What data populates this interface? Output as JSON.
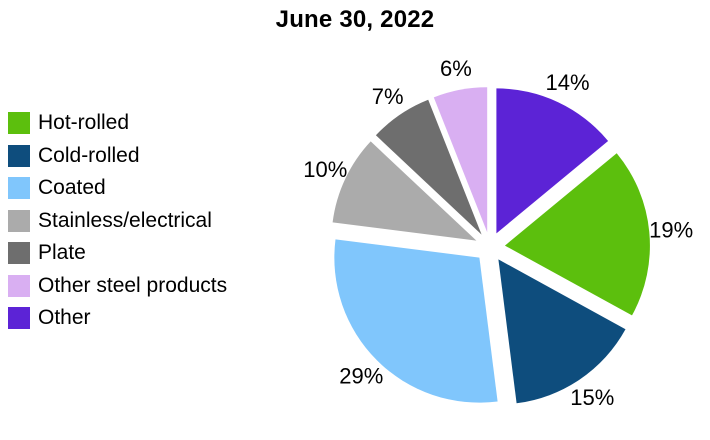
{
  "title": "June 30, 2022",
  "chart_data": {
    "type": "pie",
    "title": "June 30, 2022",
    "series": [
      {
        "name": "Hot-rolled",
        "value": 19,
        "label": "19%",
        "color": "#5CBF0D"
      },
      {
        "name": "Cold-rolled",
        "value": 15,
        "label": "15%",
        "color": "#0E4D7D"
      },
      {
        "name": "Coated",
        "value": 29,
        "label": "29%",
        "color": "#80C6FC"
      },
      {
        "name": "Stainless/electrical",
        "value": 10,
        "label": "10%",
        "color": "#ABABAB"
      },
      {
        "name": "Plate",
        "value": 7,
        "label": "7%",
        "color": "#6E6E6E"
      },
      {
        "name": "Other steel products",
        "value": 6,
        "label": "6%",
        "color": "#D9AFF2"
      },
      {
        "name": "Other",
        "value": 14,
        "label": "14%",
        "color": "#5C23D6"
      }
    ],
    "legend_position": "left",
    "layout_hints": {
      "start_angle_deg_clockwise_from_top": 50.4,
      "exploded": true,
      "grid": false
    }
  }
}
